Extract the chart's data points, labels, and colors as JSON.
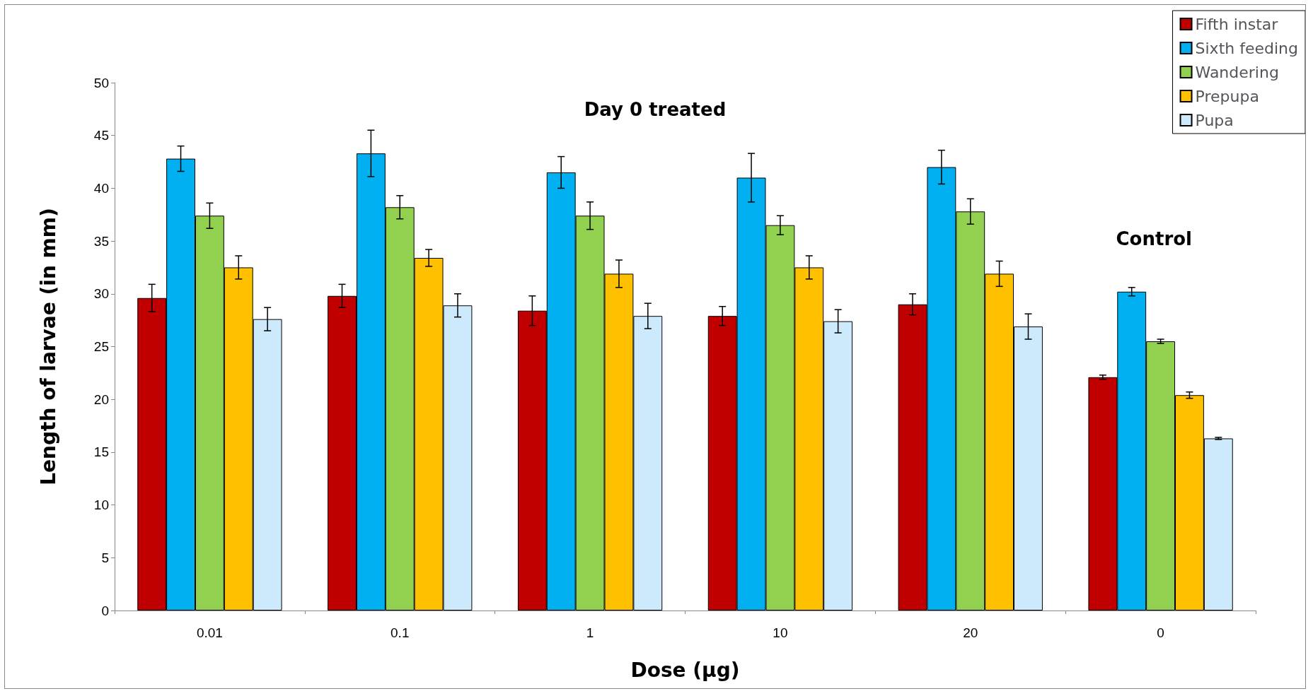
{
  "chart_data": {
    "type": "bar",
    "xlabel": "Dose (µg)",
    "ylabel": "Length of larvae (in mm)",
    "categories": [
      "0.01",
      "0.1",
      "1",
      "10",
      "20",
      "0"
    ],
    "series": [
      {
        "name": "Fifth instar",
        "color": "#c00000",
        "values": [
          29.6,
          29.8,
          28.4,
          27.9,
          29.0,
          22.1
        ],
        "errors": [
          1.3,
          1.1,
          1.4,
          0.9,
          1.0,
          0.2
        ]
      },
      {
        "name": "Sixth feeding",
        "color": "#00b0f0",
        "values": [
          42.8,
          43.3,
          41.5,
          41.0,
          42.0,
          30.2
        ],
        "errors": [
          1.2,
          2.2,
          1.5,
          2.3,
          1.6,
          0.4
        ]
      },
      {
        "name": "Wandering",
        "color": "#92d050",
        "values": [
          37.4,
          38.2,
          37.4,
          36.5,
          37.8,
          25.5
        ],
        "errors": [
          1.2,
          1.1,
          1.3,
          0.9,
          1.2,
          0.2
        ]
      },
      {
        "name": "Prepupa",
        "color": "#ffc000",
        "values": [
          32.5,
          33.4,
          31.9,
          32.5,
          31.9,
          20.4
        ],
        "errors": [
          1.1,
          0.8,
          1.3,
          1.1,
          1.2,
          0.3
        ]
      },
      {
        "name": "Pupa",
        "color": "#cdeafd",
        "values": [
          27.6,
          28.9,
          27.9,
          27.4,
          26.9,
          16.3
        ],
        "errors": [
          1.1,
          1.1,
          1.2,
          1.1,
          1.2,
          0.1
        ]
      }
    ],
    "ylim": [
      0,
      50
    ],
    "yticks": [
      0,
      5,
      10,
      15,
      20,
      25,
      30,
      35,
      40,
      45,
      50
    ],
    "grid": false,
    "legend": "top right",
    "annotations": [
      "Day 0 treated",
      "Control"
    ]
  }
}
